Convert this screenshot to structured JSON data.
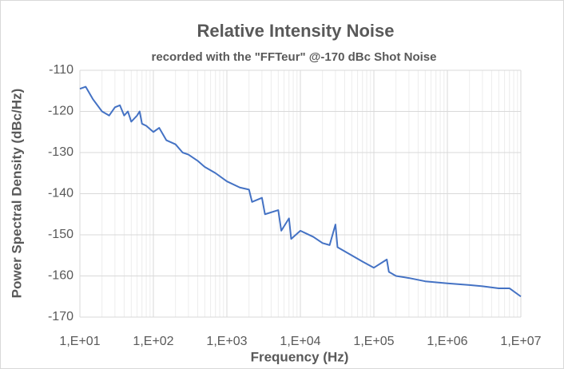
{
  "chart_data": {
    "type": "line",
    "title": "Relative Intensity Noise",
    "subtitle": "recorded with the \"FFTeur\" @-170 dBc Shot Noise",
    "x_label": "Frequency (Hz)",
    "y_label": "Power Spectral Density (dBc/Hz)",
    "x_scale": "log",
    "xlim": [
      10,
      10000000
    ],
    "xticks": [
      {
        "value": 10,
        "label": "1,E+01"
      },
      {
        "value": 100,
        "label": "1,E+02"
      },
      {
        "value": 1000,
        "label": "1,E+03"
      },
      {
        "value": 10000,
        "label": "1,E+04"
      },
      {
        "value": 100000,
        "label": "1,E+05"
      },
      {
        "value": 1000000,
        "label": "1,E+06"
      },
      {
        "value": 10000000,
        "label": "1,E+07"
      }
    ],
    "ylim": [
      -170,
      -110
    ],
    "yticks": [
      -110,
      -120,
      -130,
      -140,
      -150,
      -160,
      -170
    ],
    "grid": true,
    "minor_grid": true,
    "series": [
      {
        "color": "#4472c4",
        "x": [
          10,
          12,
          15,
          20,
          25,
          30,
          35,
          40,
          45,
          50,
          60,
          65,
          70,
          80,
          100,
          120,
          150,
          200,
          250,
          300,
          400,
          500,
          700,
          1000,
          1500,
          2000,
          2200,
          3000,
          3300,
          5000,
          5500,
          7000,
          7500,
          10000,
          15000,
          20000,
          25000,
          30000,
          32000,
          50000,
          70000,
          100000,
          150000,
          160000,
          200000,
          300000,
          500000,
          1000000,
          2000000,
          3000000,
          5000000,
          7000000,
          10000000
        ],
        "values": [
          -114.5,
          -114,
          -117,
          -120,
          -121,
          -119,
          -118.5,
          -121,
          -120,
          -122.5,
          -121,
          -120,
          -123,
          -123.5,
          -125,
          -124,
          -127,
          -128,
          -130,
          -130.5,
          -132,
          -133.5,
          -135,
          -137,
          -138.5,
          -139,
          -142,
          -141,
          -145,
          -144,
          -149,
          -146,
          -151,
          -149,
          -150.5,
          -152,
          -152.5,
          -147.5,
          -153,
          -155,
          -156.5,
          -158,
          -156,
          -159,
          -160,
          -160.5,
          -161.3,
          -161.8,
          -162.2,
          -162.5,
          -163,
          -163,
          -165
        ]
      }
    ]
  }
}
